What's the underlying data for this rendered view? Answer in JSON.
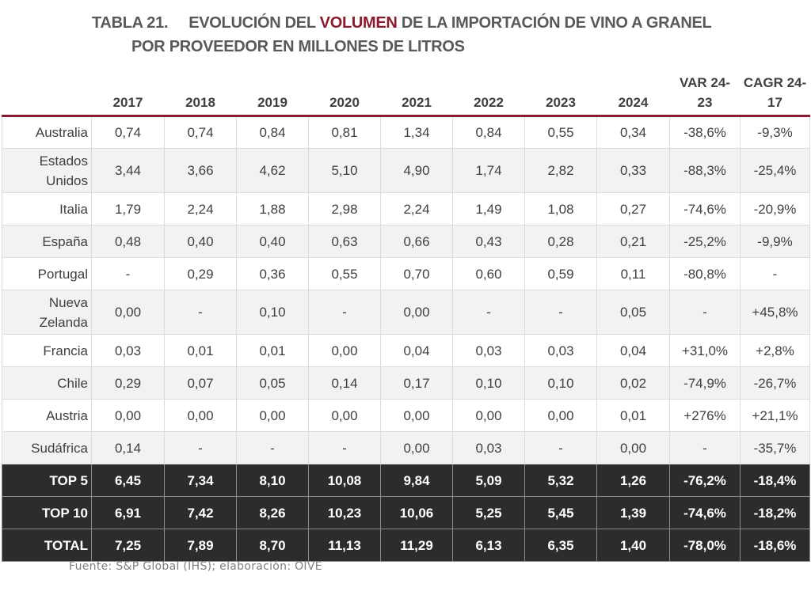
{
  "title": {
    "number": "TABLA 21.",
    "line1_pre": "EVOLUCIÓN DEL ",
    "line1_highlight": "VOLUMEN",
    "line1_post": " DE LA IMPORTACIÓN DE VINO A GRANEL",
    "line2": "POR PROVEEDOR EN MILLONES DE LITROS"
  },
  "colors": {
    "accent": "#8b1a2e",
    "total_row_bg": "#2e2c2a"
  },
  "table": {
    "headers": [
      "",
      "2017",
      "2018",
      "2019",
      "2020",
      "2021",
      "2022",
      "2023",
      "2024",
      "VAR 24-23",
      "CAGR 24-17"
    ],
    "rows": [
      {
        "label": "Australia",
        "values": [
          "0,74",
          "0,74",
          "0,84",
          "0,81",
          "1,34",
          "0,84",
          "0,55",
          "0,34",
          "-38,6%",
          "-9,3%"
        ]
      },
      {
        "label": "Estados Unidos",
        "values": [
          "3,44",
          "3,66",
          "4,62",
          "5,10",
          "4,90",
          "1,74",
          "2,82",
          "0,33",
          "-88,3%",
          "-25,4%"
        ]
      },
      {
        "label": "Italia",
        "values": [
          "1,79",
          "2,24",
          "1,88",
          "2,98",
          "2,24",
          "1,49",
          "1,08",
          "0,27",
          "-74,6%",
          "-20,9%"
        ]
      },
      {
        "label": "España",
        "values": [
          "0,48",
          "0,40",
          "0,40",
          "0,63",
          "0,66",
          "0,43",
          "0,28",
          "0,21",
          "-25,2%",
          "-9,9%"
        ]
      },
      {
        "label": "Portugal",
        "values": [
          "-",
          "0,29",
          "0,36",
          "0,55",
          "0,70",
          "0,60",
          "0,59",
          "0,11",
          "-80,8%",
          "-"
        ]
      },
      {
        "label": "Nueva Zelanda",
        "values": [
          "0,00",
          "-",
          "0,10",
          "-",
          "0,00",
          "-",
          "-",
          "0,05",
          "-",
          "+45,8%"
        ]
      },
      {
        "label": "Francia",
        "values": [
          "0,03",
          "0,01",
          "0,01",
          "0,00",
          "0,04",
          "0,03",
          "0,03",
          "0,04",
          "+31,0%",
          "+2,8%"
        ]
      },
      {
        "label": "Chile",
        "values": [
          "0,29",
          "0,07",
          "0,05",
          "0,14",
          "0,17",
          "0,10",
          "0,10",
          "0,02",
          "-74,9%",
          "-26,7%"
        ]
      },
      {
        "label": "Austria",
        "values": [
          "0,00",
          "0,00",
          "0,00",
          "0,00",
          "0,00",
          "0,00",
          "0,00",
          "0,01",
          "+276%",
          "+21,1%"
        ]
      },
      {
        "label": "Sudáfrica",
        "values": [
          "0,14",
          "-",
          "-",
          "-",
          "0,00",
          "0,03",
          "-",
          "0,00",
          "-",
          "-35,7%"
        ]
      }
    ],
    "totals": [
      {
        "label": "TOP 5",
        "values": [
          "6,45",
          "7,34",
          "8,10",
          "10,08",
          "9,84",
          "5,09",
          "5,32",
          "1,26",
          "-76,2%",
          "-18,4%"
        ]
      },
      {
        "label": "TOP 10",
        "values": [
          "6,91",
          "7,42",
          "8,26",
          "10,23",
          "10,06",
          "5,25",
          "5,45",
          "1,39",
          "-74,6%",
          "-18,2%"
        ]
      },
      {
        "label": "TOTAL",
        "values": [
          "7,25",
          "7,89",
          "8,70",
          "11,13",
          "11,29",
          "6,13",
          "6,35",
          "1,40",
          "-78,0%",
          "-18,6%"
        ]
      }
    ]
  },
  "source": "Fuente: S&P Global (IHS); elaboración: OIVE"
}
